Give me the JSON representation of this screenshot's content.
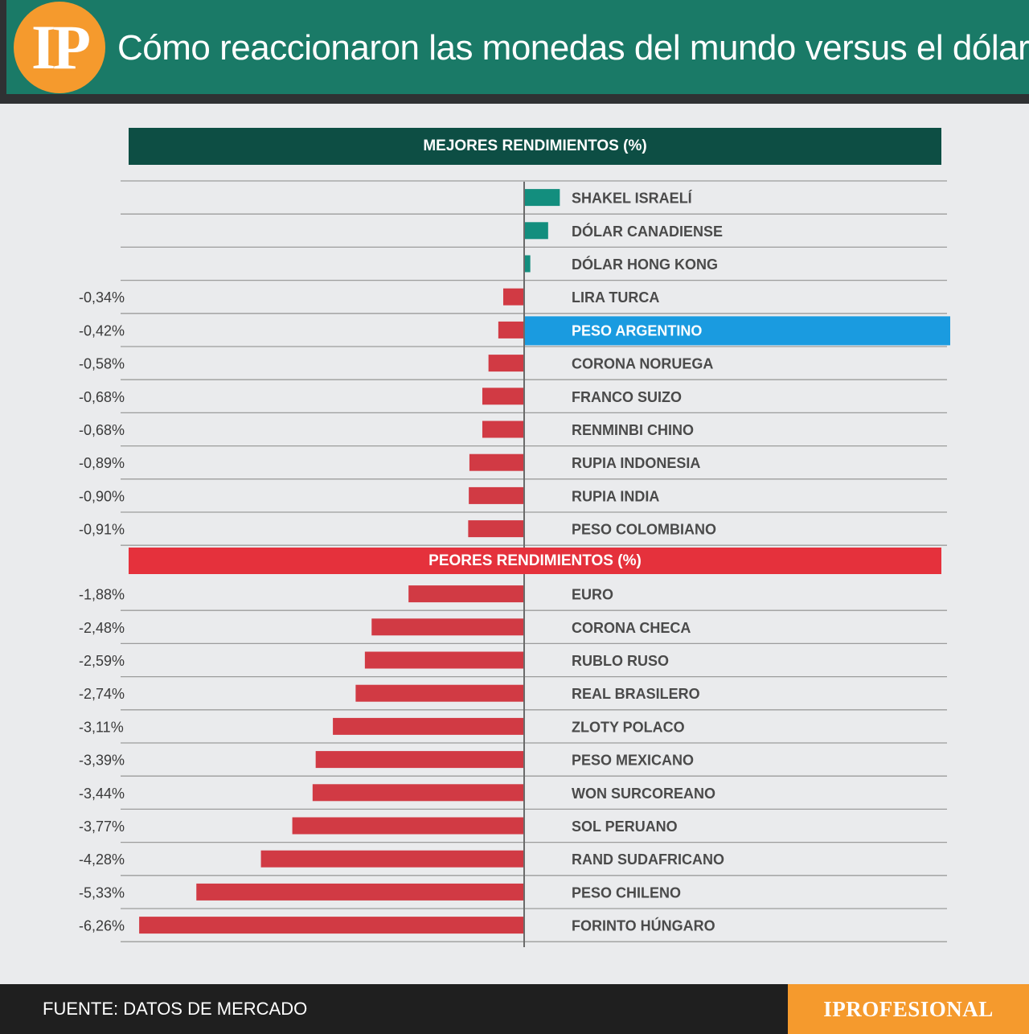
{
  "header": {
    "logo_text": "IP",
    "title": "Cómo reaccionaron las monedas del mundo versus el dólar"
  },
  "colors": {
    "header_bg": "#1a7a67",
    "best_bar_bg": "#0d4e44",
    "worst_bar_bg": "#e5313c",
    "positive_bar": "#138e7e",
    "negative_bar": "#d13a44",
    "highlight": "#1a9be0",
    "brand": "#f59a2d"
  },
  "chart_data": {
    "type": "bar",
    "orientation": "horizontal",
    "best_label": "MEJORES RENDIMIENTOS (%)",
    "worst_label": "PEORES RENDIMIENTOS (%)",
    "highlighted": "PESO ARGENTINO",
    "best": [
      {
        "name": "SHAKEL ISRAELÍ",
        "value": 0.58,
        "label": ""
      },
      {
        "name": "DÓLAR CANADIENSE",
        "value": 0.39,
        "label": ""
      },
      {
        "name": "DÓLAR HONG KONG",
        "value": 0.1,
        "label": ""
      },
      {
        "name": "LIRA TURCA",
        "value": -0.34,
        "label": "-0,34%"
      },
      {
        "name": "PESO ARGENTINO",
        "value": -0.42,
        "label": "-0,42%"
      },
      {
        "name": "CORONA NORUEGA",
        "value": -0.58,
        "label": "-0,58%"
      },
      {
        "name": "FRANCO SUIZO",
        "value": -0.68,
        "label": "-0,68%"
      },
      {
        "name": "RENMINBI CHINO",
        "value": -0.68,
        "label": "-0,68%"
      },
      {
        "name": "RUPIA INDONESIA",
        "value": -0.89,
        "label": "-0,89%"
      },
      {
        "name": "RUPIA INDIA",
        "value": -0.9,
        "label": "-0,90%"
      },
      {
        "name": "PESO COLOMBIANO",
        "value": -0.91,
        "label": "-0,91%"
      }
    ],
    "worst": [
      {
        "name": "EURO",
        "value": -1.88,
        "label": "-1,88%"
      },
      {
        "name": "CORONA CHECA",
        "value": -2.48,
        "label": "-2,48%"
      },
      {
        "name": "RUBLO RUSO",
        "value": -2.59,
        "label": "-2,59%"
      },
      {
        "name": "REAL BRASILERO",
        "value": -2.74,
        "label": "-2,74%"
      },
      {
        "name": "ZLOTY POLACO",
        "value": -3.11,
        "label": "-3,11%"
      },
      {
        "name": "PESO MEXICANO",
        "value": -3.39,
        "label": "-3,39%"
      },
      {
        "name": "WON SURCOREANO",
        "value": -3.44,
        "label": "-3,44%"
      },
      {
        "name": "SOL PERUANO",
        "value": -3.77,
        "label": "-3,77%"
      },
      {
        "name": "RAND SUDAFRICANO",
        "value": -4.28,
        "label": "-4,28%"
      },
      {
        "name": "PESO CHILENO",
        "value": -5.33,
        "label": "-5,33%"
      },
      {
        "name": "FORINTO HÚNGARO",
        "value": -6.26,
        "label": "-6,26%"
      }
    ]
  },
  "footer": {
    "source": "FUENTE: DATOS DE MERCADO",
    "brand": "IPROFESIONAL"
  }
}
